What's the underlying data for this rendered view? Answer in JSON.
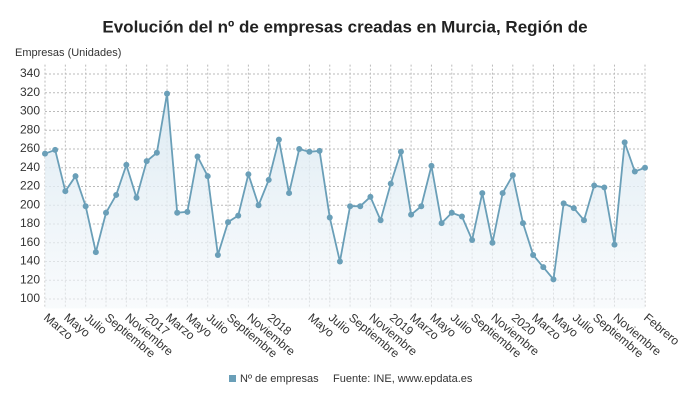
{
  "chart_data": {
    "type": "line",
    "title": "Evolución del nº de empresas creadas en Murcia, Región de",
    "y_label": "Empresas (Unidades)",
    "source": "Fuente: INE, www.epdata.es",
    "categories": [
      "Marzo",
      null,
      "Mayo",
      null,
      "Julio",
      null,
      "Septiembre",
      null,
      "Noviembre",
      null,
      "2017",
      null,
      "Marzo",
      null,
      "Mayo",
      null,
      "Julio",
      null,
      "Septiembre",
      null,
      "Noviembre",
      null,
      "2018",
      null,
      null,
      null,
      "Mayo",
      null,
      "Julio",
      null,
      "Septiembre",
      null,
      "Noviembre",
      null,
      "2019",
      null,
      "Marzo",
      null,
      "Mayo",
      null,
      "Julio",
      null,
      "Septiembre",
      null,
      "Noviembre",
      null,
      "2020",
      null,
      "Marzo",
      null,
      "Mayo",
      null,
      "Julio",
      null,
      "Septiembre",
      null,
      "Noviembre",
      null,
      null,
      "Febrero"
    ],
    "series": [
      {
        "name": "Nº de empresas",
        "color": "#6a9fb8",
        "values": [
          255,
          259,
          215,
          231,
          199,
          150,
          192,
          211,
          243,
          208,
          247,
          256,
          319,
          192,
          193,
          252,
          231,
          147,
          182,
          189,
          233,
          200,
          227,
          270,
          213,
          260,
          257,
          258,
          187,
          140,
          199,
          199,
          209,
          184,
          223,
          257,
          190,
          199,
          242,
          181,
          192,
          188,
          163,
          213,
          160,
          213,
          232,
          181,
          147,
          134,
          121,
          202,
          197,
          184,
          221,
          219,
          158,
          267,
          236,
          240
        ]
      }
    ],
    "ylim": [
      90,
      350
    ],
    "yticks": [
      100,
      120,
      140,
      160,
      180,
      200,
      220,
      240,
      260,
      280,
      300,
      320,
      340
    ],
    "grid": true
  }
}
